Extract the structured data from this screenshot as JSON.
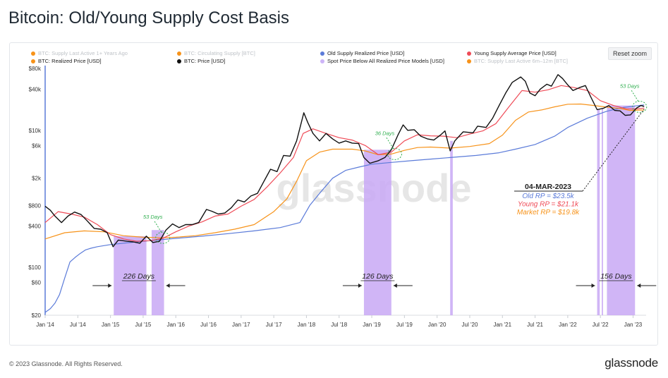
{
  "title": "Bitcoin: Old/Young Supply Cost Basis",
  "reset_zoom_label": "Reset zoom",
  "legend": [
    {
      "label": "BTC: Supply Last Active 1+ Years Ago",
      "color": "#f7931a",
      "enabled": false
    },
    {
      "label": "BTC: Circulating Supply [BTC]",
      "color": "#f7931a",
      "enabled": false
    },
    {
      "label": "Old Supply Realized Price [USD]",
      "color": "#5b7bd9",
      "enabled": true
    },
    {
      "label": "Young Supply Average Price [USD]",
      "color": "#ef4b57",
      "enabled": true
    },
    {
      "label": "BTC: Realized Price [USD]",
      "color": "#f7931a",
      "enabled": true
    },
    {
      "label": "BTC: Price [USD]",
      "color": "#111111",
      "enabled": true
    },
    {
      "label": "Spot Price Below All Realized Price Models [USD]",
      "color": "#cdb4f7",
      "enabled": true
    },
    {
      "label": "BTC: Supply Last Active 6m–12m [BTC]",
      "color": "#f7931a",
      "enabled": false
    }
  ],
  "watermark": "glassnode",
  "footer": {
    "copyright": "© 2023 Glassnode. All Rights Reserved.",
    "brand": "glassnode"
  },
  "chart_data": {
    "type": "line",
    "y_scale": "log",
    "ylim": [
      20,
      80000
    ],
    "y_ticks": [
      20,
      60,
      100,
      400,
      800,
      2000,
      6000,
      10000,
      40000,
      80000
    ],
    "y_tick_labels": [
      "$20",
      "$60",
      "$100",
      "$400",
      "$800",
      "$2k",
      "$6k",
      "$10k",
      "$40k",
      "$80k"
    ],
    "x_ticks": [
      "Jan '14",
      "Jul '14",
      "Jan '15",
      "Jul '15",
      "Jan '16",
      "Jul '16",
      "Jan '17",
      "Jul '17",
      "Jan '18",
      "Jul '18",
      "Jan '19",
      "Jul '19",
      "Jan '20",
      "Jul '20",
      "Jan '21",
      "Jul '21",
      "Jan '22",
      "Jul '22",
      "Jan '23"
    ],
    "x_tick_dates": [
      2014.0,
      2014.5,
      2015.0,
      2015.5,
      2016.0,
      2016.5,
      2017.0,
      2017.5,
      2018.0,
      2018.5,
      2019.0,
      2019.5,
      2020.0,
      2020.5,
      2021.0,
      2021.5,
      2022.0,
      2022.5,
      2023.0
    ],
    "xlim": [
      2014.0,
      2023.2
    ],
    "series": [
      {
        "name": "BTC: Price [USD]",
        "color": "#111111",
        "points": [
          [
            2014.0,
            780
          ],
          [
            2014.08,
            680
          ],
          [
            2014.15,
            560
          ],
          [
            2014.25,
            450
          ],
          [
            2014.35,
            560
          ],
          [
            2014.45,
            640
          ],
          [
            2014.55,
            590
          ],
          [
            2014.65,
            470
          ],
          [
            2014.75,
            370
          ],
          [
            2014.85,
            360
          ],
          [
            2014.95,
            320
          ],
          [
            2015.04,
            200
          ],
          [
            2015.12,
            250
          ],
          [
            2015.25,
            240
          ],
          [
            2015.35,
            235
          ],
          [
            2015.45,
            225
          ],
          [
            2015.55,
            285
          ],
          [
            2015.65,
            230
          ],
          [
            2015.75,
            240
          ],
          [
            2015.85,
            350
          ],
          [
            2015.95,
            430
          ],
          [
            2016.05,
            380
          ],
          [
            2016.15,
            420
          ],
          [
            2016.25,
            420
          ],
          [
            2016.35,
            450
          ],
          [
            2016.47,
            700
          ],
          [
            2016.55,
            660
          ],
          [
            2016.65,
            600
          ],
          [
            2016.75,
            620
          ],
          [
            2016.85,
            740
          ],
          [
            2016.95,
            960
          ],
          [
            2017.05,
            900
          ],
          [
            2017.15,
            1100
          ],
          [
            2017.25,
            1200
          ],
          [
            2017.35,
            1800
          ],
          [
            2017.45,
            2700
          ],
          [
            2017.55,
            2500
          ],
          [
            2017.65,
            4300
          ],
          [
            2017.75,
            4200
          ],
          [
            2017.85,
            7000
          ],
          [
            2017.96,
            18000
          ],
          [
            2018.02,
            13000
          ],
          [
            2018.1,
            9000
          ],
          [
            2018.2,
            7000
          ],
          [
            2018.3,
            9000
          ],
          [
            2018.4,
            7500
          ],
          [
            2018.5,
            6500
          ],
          [
            2018.6,
            7000
          ],
          [
            2018.7,
            6500
          ],
          [
            2018.8,
            6400
          ],
          [
            2018.88,
            4000
          ],
          [
            2018.97,
            3300
          ],
          [
            2019.1,
            3600
          ],
          [
            2019.2,
            4000
          ],
          [
            2019.3,
            5200
          ],
          [
            2019.4,
            8500
          ],
          [
            2019.48,
            12000
          ],
          [
            2019.55,
            10000
          ],
          [
            2019.65,
            10200
          ],
          [
            2019.75,
            8200
          ],
          [
            2019.85,
            7500
          ],
          [
            2019.95,
            7200
          ],
          [
            2020.05,
            8500
          ],
          [
            2020.12,
            9800
          ],
          [
            2020.2,
            5000
          ],
          [
            2020.27,
            7000
          ],
          [
            2020.4,
            9500
          ],
          [
            2020.55,
            9200
          ],
          [
            2020.62,
            11500
          ],
          [
            2020.75,
            11000
          ],
          [
            2020.85,
            15000
          ],
          [
            2020.95,
            23000
          ],
          [
            2021.05,
            35000
          ],
          [
            2021.15,
            50000
          ],
          [
            2021.28,
            60000
          ],
          [
            2021.35,
            52000
          ],
          [
            2021.42,
            35000
          ],
          [
            2021.5,
            32000
          ],
          [
            2021.58,
            40000
          ],
          [
            2021.68,
            47000
          ],
          [
            2021.75,
            44000
          ],
          [
            2021.85,
            65000
          ],
          [
            2021.92,
            57000
          ],
          [
            2022.0,
            46000
          ],
          [
            2022.08,
            38000
          ],
          [
            2022.18,
            42000
          ],
          [
            2022.27,
            45000
          ],
          [
            2022.35,
            31000
          ],
          [
            2022.45,
            20000
          ],
          [
            2022.55,
            21000
          ],
          [
            2022.63,
            23000
          ],
          [
            2022.72,
            19500
          ],
          [
            2022.8,
            19200
          ],
          [
            2022.88,
            16500
          ],
          [
            2022.96,
            16800
          ],
          [
            2023.05,
            21000
          ],
          [
            2023.12,
            23000
          ],
          [
            2023.17,
            22300
          ]
        ]
      },
      {
        "name": "Young Supply Average Price [USD]",
        "color": "#ef4b57",
        "points": [
          [
            2014.0,
            450
          ],
          [
            2014.2,
            650
          ],
          [
            2014.4,
            600
          ],
          [
            2014.6,
            540
          ],
          [
            2014.8,
            420
          ],
          [
            2015.0,
            300
          ],
          [
            2015.2,
            260
          ],
          [
            2015.4,
            240
          ],
          [
            2015.6,
            245
          ],
          [
            2015.8,
            265
          ],
          [
            2016.0,
            330
          ],
          [
            2016.2,
            400
          ],
          [
            2016.4,
            460
          ],
          [
            2016.6,
            560
          ],
          [
            2016.8,
            600
          ],
          [
            2017.0,
            780
          ],
          [
            2017.2,
            980
          ],
          [
            2017.4,
            1500
          ],
          [
            2017.6,
            2400
          ],
          [
            2017.8,
            4000
          ],
          [
            2017.95,
            9000
          ],
          [
            2018.1,
            10500
          ],
          [
            2018.3,
            9000
          ],
          [
            2018.5,
            7800
          ],
          [
            2018.7,
            7200
          ],
          [
            2018.9,
            6000
          ],
          [
            2019.1,
            4400
          ],
          [
            2019.3,
            4800
          ],
          [
            2019.5,
            7000
          ],
          [
            2019.7,
            8600
          ],
          [
            2019.9,
            8300
          ],
          [
            2020.1,
            8200
          ],
          [
            2020.3,
            7800
          ],
          [
            2020.5,
            8800
          ],
          [
            2020.7,
            9800
          ],
          [
            2020.9,
            12500
          ],
          [
            2021.1,
            22000
          ],
          [
            2021.3,
            38000
          ],
          [
            2021.5,
            36000
          ],
          [
            2021.7,
            39000
          ],
          [
            2021.9,
            45000
          ],
          [
            2022.1,
            42000
          ],
          [
            2022.3,
            38000
          ],
          [
            2022.5,
            27000
          ],
          [
            2022.7,
            23000
          ],
          [
            2022.9,
            20500
          ],
          [
            2023.05,
            20500
          ],
          [
            2023.17,
            21100
          ]
        ]
      },
      {
        "name": "BTC: Realized Price [USD]",
        "color": "#f7931a",
        "points": [
          [
            2014.0,
            260
          ],
          [
            2014.3,
            320
          ],
          [
            2014.6,
            340
          ],
          [
            2014.9,
            330
          ],
          [
            2015.2,
            290
          ],
          [
            2015.5,
            275
          ],
          [
            2015.8,
            270
          ],
          [
            2016.0,
            275
          ],
          [
            2016.3,
            290
          ],
          [
            2016.6,
            320
          ],
          [
            2016.9,
            360
          ],
          [
            2017.2,
            420
          ],
          [
            2017.5,
            650
          ],
          [
            2017.7,
            1000
          ],
          [
            2017.85,
            1800
          ],
          [
            2018.0,
            3600
          ],
          [
            2018.2,
            4800
          ],
          [
            2018.4,
            5300
          ],
          [
            2018.7,
            5300
          ],
          [
            2018.9,
            5000
          ],
          [
            2019.1,
            4400
          ],
          [
            2019.3,
            4500
          ],
          [
            2019.5,
            5100
          ],
          [
            2019.7,
            5600
          ],
          [
            2019.9,
            5700
          ],
          [
            2020.2,
            5500
          ],
          [
            2020.5,
            5800
          ],
          [
            2020.8,
            6400
          ],
          [
            2021.0,
            8500
          ],
          [
            2021.2,
            14000
          ],
          [
            2021.4,
            18500
          ],
          [
            2021.6,
            19800
          ],
          [
            2021.8,
            22000
          ],
          [
            2022.0,
            24000
          ],
          [
            2022.2,
            24200
          ],
          [
            2022.4,
            23000
          ],
          [
            2022.6,
            21800
          ],
          [
            2022.8,
            20800
          ],
          [
            2022.95,
            19500
          ],
          [
            2023.17,
            19800
          ]
        ]
      },
      {
        "name": "Old Supply Realized Price [USD]",
        "color": "#5b7bd9",
        "points": [
          [
            2014.0,
            22
          ],
          [
            2014.08,
            25
          ],
          [
            2014.15,
            30
          ],
          [
            2014.22,
            40
          ],
          [
            2014.3,
            70
          ],
          [
            2014.38,
            120
          ],
          [
            2014.46,
            140
          ],
          [
            2014.54,
            160
          ],
          [
            2014.62,
            180
          ],
          [
            2014.7,
            190
          ],
          [
            2014.8,
            200
          ],
          [
            2015.0,
            215
          ],
          [
            2015.3,
            230
          ],
          [
            2015.6,
            245
          ],
          [
            2016.0,
            265
          ],
          [
            2016.4,
            285
          ],
          [
            2016.8,
            310
          ],
          [
            2017.2,
            340
          ],
          [
            2017.6,
            380
          ],
          [
            2017.9,
            450
          ],
          [
            2018.05,
            800
          ],
          [
            2018.2,
            1200
          ],
          [
            2018.4,
            2000
          ],
          [
            2018.6,
            2600
          ],
          [
            2018.8,
            2900
          ],
          [
            2019.0,
            3200
          ],
          [
            2019.3,
            3400
          ],
          [
            2019.6,
            3600
          ],
          [
            2019.9,
            3800
          ],
          [
            2020.2,
            4000
          ],
          [
            2020.6,
            4300
          ],
          [
            2020.95,
            4700
          ],
          [
            2021.2,
            5300
          ],
          [
            2021.5,
            6200
          ],
          [
            2021.8,
            8200
          ],
          [
            2022.0,
            11000
          ],
          [
            2022.3,
            15000
          ],
          [
            2022.6,
            19000
          ],
          [
            2022.85,
            21500
          ],
          [
            2023.17,
            23500
          ]
        ]
      }
    ],
    "spot_below_regions": [
      [
        2015.05,
        2015.55
      ],
      [
        2015.63,
        2015.82
      ],
      [
        2018.88,
        2019.3
      ],
      [
        2020.2,
        2020.24
      ],
      [
        2022.45,
        2022.49
      ],
      [
        2022.52,
        2022.54
      ],
      [
        2022.6,
        2023.03
      ]
    ],
    "annotations": {
      "green_ovals": [
        {
          "label": "53 Days",
          "date": 2015.8,
          "price": 270
        },
        {
          "label": "36 Days",
          "date": 2019.35,
          "price": 4500
        },
        {
          "label": "53 Days",
          "date": 2023.1,
          "price": 22000
        }
      ],
      "durations": [
        {
          "label": "226 Days",
          "from": 2015.05,
          "to": 2015.82
        },
        {
          "label": "126 Days",
          "from": 2018.88,
          "to": 2019.3
        },
        {
          "label": "156 Days",
          "from": 2022.45,
          "to": 2023.03
        }
      ],
      "callout_date": "04-MAR-2023",
      "callout_lines": [
        {
          "text": "Old RP = $23.5k",
          "color": "#5b7bd9"
        },
        {
          "text": "Young RP = $21.1k",
          "color": "#ef4b57"
        },
        {
          "text": "Market RP = $19.8k",
          "color": "#f7931a"
        }
      ]
    }
  }
}
